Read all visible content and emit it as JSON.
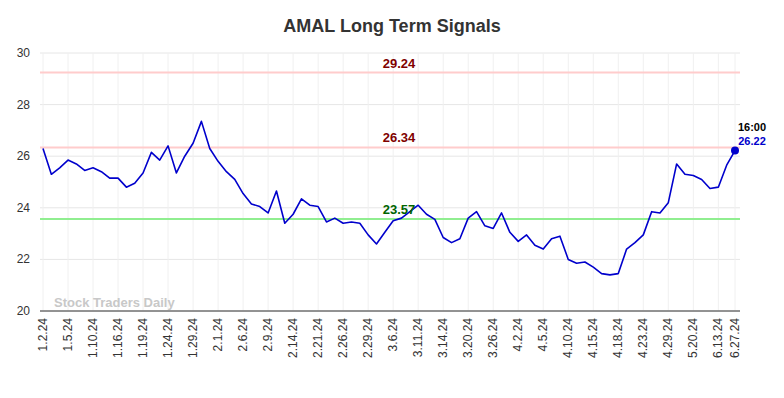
{
  "chart_data": {
    "type": "line",
    "title": "AMAL Long Term Signals",
    "categories": [
      "1.2.24",
      null,
      null,
      "1.5.24",
      null,
      null,
      "1.10.24",
      null,
      null,
      "1.16.24",
      null,
      null,
      "1.19.24",
      null,
      null,
      "1.24.24",
      null,
      null,
      "1.29.24",
      null,
      null,
      "2.1.24",
      null,
      null,
      "2.6.24",
      null,
      null,
      "2.9.24",
      null,
      null,
      "2.14.24",
      null,
      null,
      "2.21.24",
      null,
      null,
      "2.26.24",
      null,
      null,
      "2.29.24",
      null,
      null,
      "3.6.24",
      null,
      null,
      "3.11.24",
      null,
      null,
      "3.14.24",
      null,
      null,
      "3.20.24",
      null,
      null,
      "3.26.24",
      null,
      null,
      "4.2.24",
      null,
      null,
      "4.5.24",
      null,
      null,
      "4.10.24",
      null,
      null,
      "4.15.24",
      null,
      null,
      "4.18.24",
      null,
      null,
      "4.23.24",
      null,
      null,
      "4.29.24",
      null,
      null,
      "5.20.24",
      null,
      null,
      "6.13.24",
      null,
      "6.27.24"
    ],
    "series": [
      {
        "name": "AMAL",
        "color": "#0000cc",
        "values": [
          26.3,
          25.3,
          25.55,
          25.85,
          25.7,
          25.45,
          25.55,
          25.4,
          25.15,
          25.15,
          24.8,
          24.95,
          25.35,
          26.15,
          25.85,
          26.4,
          25.35,
          26.0,
          26.5,
          27.35,
          26.3,
          25.8,
          25.4,
          25.1,
          24.55,
          24.15,
          24.05,
          23.8,
          24.65,
          23.4,
          23.75,
          24.35,
          24.1,
          24.05,
          23.45,
          23.6,
          23.4,
          23.45,
          23.4,
          22.95,
          22.6,
          23.05,
          23.5,
          23.6,
          23.85,
          24.1,
          23.75,
          23.55,
          22.85,
          22.65,
          22.8,
          23.6,
          23.85,
          23.3,
          23.2,
          23.8,
          23.05,
          22.7,
          22.95,
          22.55,
          22.4,
          22.8,
          22.9,
          22.0,
          21.85,
          21.9,
          21.7,
          21.45,
          21.4,
          21.45,
          22.4,
          22.65,
          22.95,
          23.85,
          23.8,
          24.2,
          25.7,
          25.3,
          25.25,
          25.1,
          24.75,
          24.8,
          25.65,
          26.22
        ]
      }
    ],
    "reference_lines": [
      {
        "value": 29.24,
        "label": "29.24",
        "color": "#ffcccc",
        "label_color": "#800000"
      },
      {
        "value": 26.34,
        "label": "26.34",
        "color": "#ffcccc",
        "label_color": "#800000"
      },
      {
        "value": 23.57,
        "label": "23.57",
        "color": "#90ee90",
        "label_color": "#006400"
      }
    ],
    "last_point": {
      "time_label": "16:00",
      "value_label": "26.22"
    },
    "watermark": "Stock Traders Daily",
    "ylim": [
      20,
      30
    ],
    "yticks": [
      20,
      22,
      24,
      26,
      28,
      30
    ],
    "grid": true
  }
}
